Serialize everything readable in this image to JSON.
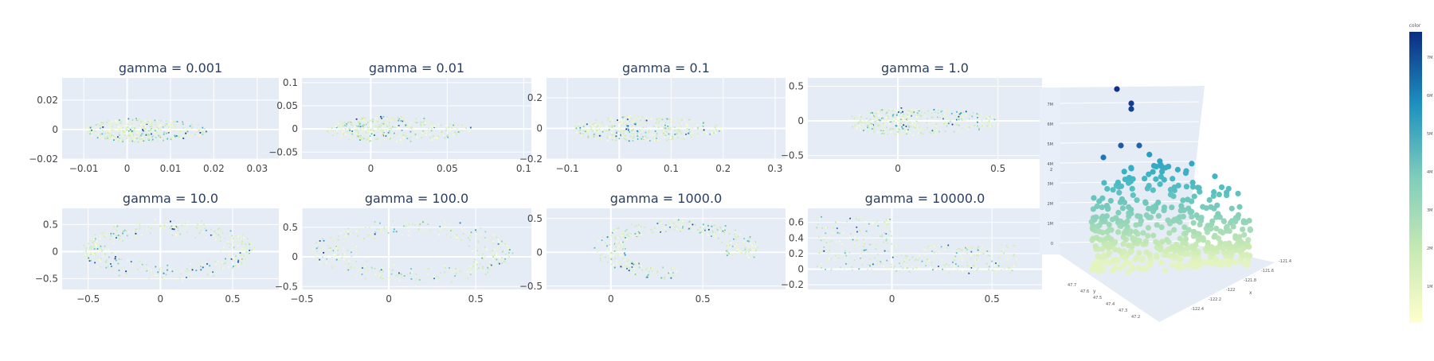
{
  "chart_data": [
    {
      "type": "scatter",
      "title": "gamma = 0.001",
      "xlim": [
        -0.015,
        0.035
      ],
      "ylim": [
        -0.02,
        0.035
      ],
      "xticks": [
        {
          "v": -0.01,
          "t": "−0.01"
        },
        {
          "v": 0,
          "t": "0"
        },
        {
          "v": 0.01,
          "t": "0.01"
        },
        {
          "v": 0.02,
          "t": "0.02"
        },
        {
          "v": 0.03,
          "t": "0.03"
        }
      ],
      "yticks": [
        {
          "v": -0.02,
          "t": "−0.02"
        },
        {
          "v": 0,
          "t": "0"
        },
        {
          "v": 0.02,
          "t": "0.02"
        }
      ],
      "shape": {
        "kind": "blob",
        "cx": 0.002,
        "cy": 0.0,
        "rx": 0.012,
        "ry": 0.008
      }
    },
    {
      "type": "scatter",
      "title": "gamma = 0.01",
      "xlim": [
        -0.045,
        0.105
      ],
      "ylim": [
        -0.065,
        0.11
      ],
      "xticks": [
        {
          "v": 0,
          "t": "0"
        },
        {
          "v": 0.05,
          "t": "0.05"
        },
        {
          "v": 0.1,
          "t": "0.1"
        }
      ],
      "yticks": [
        {
          "v": -0.05,
          "t": "−0.05"
        },
        {
          "v": 0,
          "t": "0"
        },
        {
          "v": 0.05,
          "t": "0.05"
        },
        {
          "v": 0.1,
          "t": "0.1"
        }
      ],
      "shape": {
        "kind": "blob",
        "cx": 0.01,
        "cy": 0.0,
        "rx": 0.04,
        "ry": 0.028
      }
    },
    {
      "type": "scatter",
      "title": "gamma = 0.1",
      "xlim": [
        -0.14,
        0.32
      ],
      "ylim": [
        -0.2,
        0.33
      ],
      "xticks": [
        {
          "v": -0.1,
          "t": "−0.1"
        },
        {
          "v": 0,
          "t": "0"
        },
        {
          "v": 0.1,
          "t": "0.1"
        },
        {
          "v": 0.2,
          "t": "0.2"
        },
        {
          "v": 0.3,
          "t": "0.3"
        }
      ],
      "yticks": [
        {
          "v": -0.2,
          "t": "−0.2"
        },
        {
          "v": 0,
          "t": "0"
        },
        {
          "v": 0.2,
          "t": "0.2"
        }
      ],
      "shape": {
        "kind": "blob",
        "cx": 0.03,
        "cy": 0.0,
        "rx": 0.12,
        "ry": 0.085
      }
    },
    {
      "type": "scatter",
      "title": "gamma = 1.0",
      "xlim": [
        -0.45,
        0.72
      ],
      "ylim": [
        -0.55,
        0.62
      ],
      "xticks": [
        {
          "v": 0,
          "t": "0"
        },
        {
          "v": 0.5,
          "t": "0.5"
        }
      ],
      "yticks": [
        {
          "v": -0.5,
          "t": "−0.5"
        },
        {
          "v": 0,
          "t": "0"
        },
        {
          "v": 0.5,
          "t": "0.5"
        }
      ],
      "shape": {
        "kind": "blob",
        "cx": 0.06,
        "cy": 0.0,
        "rx": 0.32,
        "ry": 0.2
      }
    },
    {
      "type": "scatter",
      "title": "gamma = 10.0",
      "xlim": [
        -0.68,
        0.82
      ],
      "ylim": [
        -0.7,
        0.8
      ],
      "xticks": [
        {
          "v": -0.5,
          "t": "−0.5"
        },
        {
          "v": 0,
          "t": "0"
        },
        {
          "v": 0.5,
          "t": "0.5"
        }
      ],
      "yticks": [
        {
          "v": -0.5,
          "t": "−0.5"
        },
        {
          "v": 0,
          "t": "0"
        },
        {
          "v": 0.5,
          "t": "0.5"
        }
      ],
      "shape": {
        "kind": "ring",
        "cx": 0.05,
        "cy": 0.05,
        "rx": 0.6,
        "ry": 0.55
      }
    },
    {
      "type": "scatter",
      "title": "gamma = 100.0",
      "xlim": [
        -0.5,
        0.82
      ],
      "ylim": [
        -0.55,
        0.82
      ],
      "xticks": [
        {
          "v": -0.5,
          "t": "−0.5"
        },
        {
          "v": 0,
          "t": "0"
        },
        {
          "v": 0.5,
          "t": "0.5"
        }
      ],
      "yticks": [
        {
          "v": -0.5,
          "t": "−0.5"
        },
        {
          "v": 0,
          "t": "0"
        },
        {
          "v": 0.5,
          "t": "0.5"
        }
      ],
      "shape": {
        "kind": "ring",
        "cx": 0.13,
        "cy": 0.1,
        "rx": 0.58,
        "ry": 0.52
      }
    },
    {
      "type": "scatter",
      "title": "gamma = 1000.0",
      "xlim": [
        -0.35,
        0.95
      ],
      "ylim": [
        -0.55,
        0.65
      ],
      "xticks": [
        {
          "v": 0,
          "t": "0"
        },
        {
          "v": 0.5,
          "t": "0.5"
        }
      ],
      "yticks": [
        {
          "v": -0.5,
          "t": "−0.5"
        },
        {
          "v": 0,
          "t": "0"
        },
        {
          "v": 0.5,
          "t": "0.5"
        }
      ],
      "shape": {
        "kind": "arc",
        "cx": 0.35,
        "cy": 0.05,
        "rx": 0.45,
        "ry": 0.5
      }
    },
    {
      "type": "scatter",
      "title": "gamma = 10000.0",
      "xlim": [
        -0.42,
        0.75
      ],
      "ylim": [
        -0.26,
        0.78
      ],
      "xticks": [
        {
          "v": 0,
          "t": "0"
        },
        {
          "v": 0.5,
          "t": "0.5"
        }
      ],
      "yticks": [
        {
          "v": -0.2,
          "t": "−0.2"
        },
        {
          "v": 0,
          "t": "0"
        },
        {
          "v": 0.2,
          "t": "0.2"
        },
        {
          "v": 0.4,
          "t": "0.4"
        },
        {
          "v": 0.6,
          "t": "0.6"
        }
      ],
      "shape": {
        "kind": "vee",
        "cx": 0,
        "cy": 0,
        "rx": 0.4,
        "ry": 0.65
      }
    },
    {
      "type": "scatter3d",
      "xlabel": "x",
      "ylabel": "y",
      "zlabel": "z",
      "x_ticks": [
        "-121.4",
        "-121.6",
        "-121.8",
        "-122",
        "-122.2",
        "-122.4"
      ],
      "y_ticks": [
        "47.7",
        "47.6",
        "47.5",
        "47.4",
        "47.3",
        "47.2"
      ],
      "z_ticks": [
        "7M",
        "6M",
        "5M",
        "4M",
        "3M",
        "2M",
        "1M",
        "0"
      ],
      "colorbar": {
        "title": "color",
        "ticks": [
          "7M",
          "6M",
          "5M",
          "4M",
          "3M",
          "2M",
          "1M"
        ]
      }
    }
  ]
}
